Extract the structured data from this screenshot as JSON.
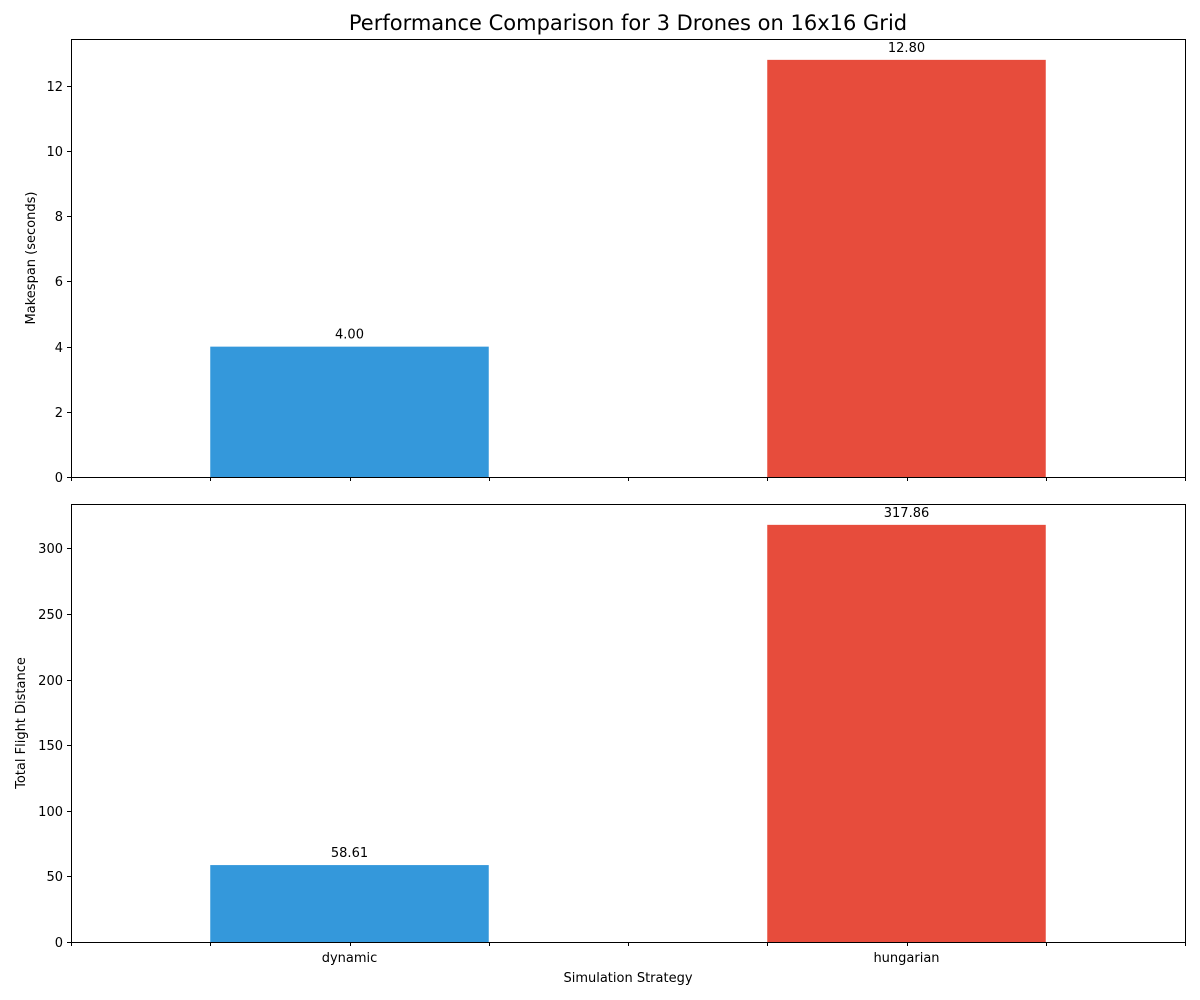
{
  "chart_data": {
    "type": "bar",
    "title": "Performance Comparison for 3 Drones on 16x16 Grid",
    "xlabel": "Simulation Strategy",
    "categories": [
      "dynamic",
      "hungarian"
    ],
    "colors": [
      "#3498db",
      "#e74c3c"
    ],
    "panels": [
      {
        "name": "makespan",
        "ylabel": "Makespan (seconds)",
        "values": [
          4.0,
          12.8
        ],
        "value_labels": [
          "4.00",
          "12.80"
        ],
        "ylim": [
          0,
          13.44
        ],
        "yticks": [
          0,
          2,
          4,
          6,
          8,
          10,
          12
        ],
        "ytick_labels": [
          "0",
          "2",
          "4",
          "6",
          "8",
          "10",
          "12"
        ]
      },
      {
        "name": "distance",
        "ylabel": "Total Flight Distance",
        "values": [
          58.61,
          317.86
        ],
        "value_labels": [
          "58.61",
          "317.86"
        ],
        "ylim": [
          0,
          333.75
        ],
        "yticks": [
          0,
          50,
          100,
          150,
          200,
          250,
          300
        ],
        "ytick_labels": [
          "0",
          "50",
          "100",
          "150",
          "200",
          "250",
          "300"
        ]
      }
    ]
  }
}
